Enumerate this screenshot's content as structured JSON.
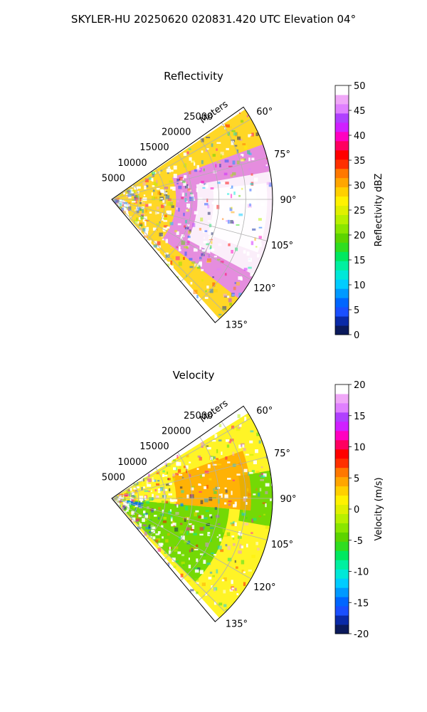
{
  "figure": {
    "suptitle": "SKYLER-HU  20250620  020831.420 UTC Elevation 04°"
  },
  "chart_data": [
    {
      "type": "heatmap",
      "subtype": "polar-sector-radar",
      "title": "Reflectivity",
      "range_label": "Meters",
      "range_ticks": [
        5000,
        10000,
        15000,
        20000,
        25000
      ],
      "range_max": 30000,
      "azimuth_range": [
        55,
        140
      ],
      "azimuth_ticks": [
        "60°",
        "75°",
        "90°",
        "105°",
        "120°",
        "135°"
      ],
      "azimuth_tick_values": [
        60,
        75,
        90,
        105,
        120,
        135
      ],
      "grid": true,
      "colorbar": {
        "label": "Reflectivity dBZ",
        "min": 0,
        "max": 50,
        "ticks": [
          0,
          5,
          10,
          15,
          20,
          25,
          30,
          35,
          40,
          45,
          50
        ],
        "colors": [
          "#0b1a5c",
          "#0a2aa8",
          "#1a4fff",
          "#0066ff",
          "#0099ff",
          "#00ccff",
          "#00e8d8",
          "#00f0a0",
          "#00e860",
          "#30dd20",
          "#5cd400",
          "#8ae600",
          "#b8f000",
          "#e0f000",
          "#fff200",
          "#ffd000",
          "#ffa600",
          "#ff7800",
          "#ff3000",
          "#ff0000",
          "#ff0060",
          "#ff00c0",
          "#d020ff",
          "#b040ff",
          "#e080ff",
          "#f0a8f8",
          "#ffffff"
        ]
      },
      "echo_regions": [
        {
          "az": [
            56,
            138
          ],
          "r": [
            0,
            30000
          ],
          "level": 15
        },
        {
          "az": [
            70,
            128
          ],
          "r": [
            12000,
            30000
          ],
          "level": 24
        },
        {
          "az": [
            80,
            118
          ],
          "r": [
            16000,
            30000
          ],
          "level": 30
        },
        {
          "az": [
            84,
            110
          ],
          "r": [
            19000,
            29000
          ],
          "level": 38
        },
        {
          "az": [
            86,
            92
          ],
          "r": [
            24000,
            27000
          ],
          "level": 45
        }
      ]
    },
    {
      "type": "heatmap",
      "subtype": "polar-sector-radar",
      "title": "Velocity",
      "range_label": "Meters",
      "range_ticks": [
        5000,
        10000,
        15000,
        20000,
        25000
      ],
      "range_max": 30000,
      "azimuth_range": [
        55,
        140
      ],
      "azimuth_ticks": [
        "60°",
        "75°",
        "90°",
        "105°",
        "120°",
        "135°"
      ],
      "azimuth_tick_values": [
        60,
        75,
        90,
        105,
        120,
        135
      ],
      "grid": true,
      "colorbar": {
        "label": "Velocity (m/s)",
        "min": -20,
        "max": 20,
        "ticks": [
          -20,
          -15,
          -10,
          -5,
          0,
          5,
          10,
          15,
          20
        ],
        "colors": [
          "#0b1a5c",
          "#0a2aa8",
          "#1a4fff",
          "#0066ff",
          "#0099ff",
          "#00ccff",
          "#00e8d8",
          "#00f0a0",
          "#00e860",
          "#30dd20",
          "#5cd400",
          "#8ae600",
          "#b8f000",
          "#e0f000",
          "#fff200",
          "#ffd000",
          "#ffa600",
          "#ff7800",
          "#ff3000",
          "#ff0000",
          "#ff0060",
          "#ff00c0",
          "#d020ff",
          "#b040ff",
          "#e080ff",
          "#f0a8f8",
          "#ffffff"
        ]
      },
      "echo_regions": [
        {
          "az": [
            58,
            138
          ],
          "r": [
            0,
            30000
          ],
          "level": 14
        },
        {
          "az": [
            95,
            135
          ],
          "r": [
            3000,
            22000
          ],
          "level": 10
        },
        {
          "az": [
            80,
            100
          ],
          "r": [
            24000,
            30000
          ],
          "level": 10
        },
        {
          "az": [
            70,
            95
          ],
          "r": [
            12000,
            26000
          ],
          "level": 16
        },
        {
          "az": [
            98,
            108
          ],
          "r": [
            0,
            6000
          ],
          "level": 3
        }
      ]
    }
  ]
}
